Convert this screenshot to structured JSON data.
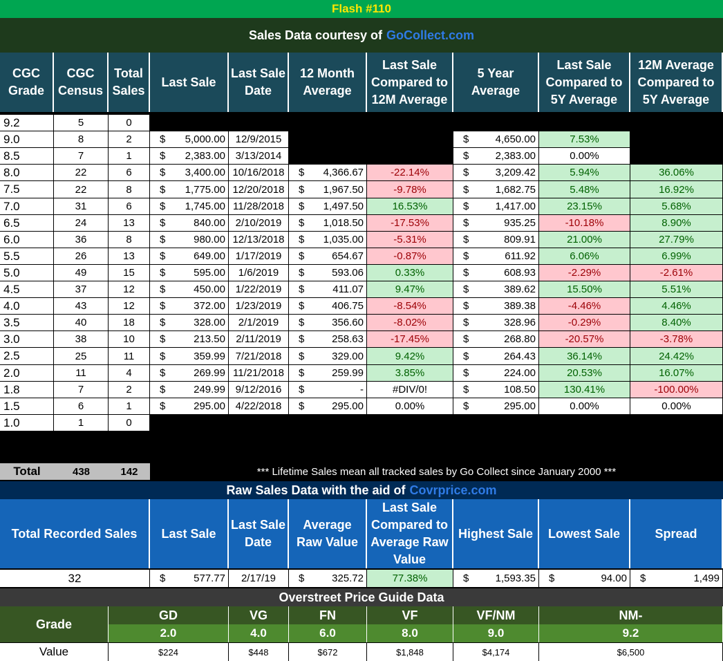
{
  "title": "Flash #110",
  "courtesy": {
    "text": "Sales Data courtesy of",
    "link": "GoCollect.com"
  },
  "cgc_headers": [
    "CGC Grade",
    "CGC Census",
    "Total Sales",
    "Last Sale",
    "Last Sale Date",
    "12 Month Average",
    "Last Sale Compared to 12M Average",
    "5 Year Average",
    "Last Sale Compared to 5Y Average",
    "12M Average Compared to 5Y Average"
  ],
  "rows": [
    {
      "grade": "9.2",
      "census": "5",
      "sales": "0",
      "last": "",
      "date": "",
      "avg12": "",
      "cmp12": "",
      "avg5": "",
      "cmp5": "",
      "c125": ""
    },
    {
      "grade": "9.0",
      "census": "8",
      "sales": "2",
      "last": "5,000.00",
      "date": "12/9/2015",
      "avg12": "",
      "cmp12": "",
      "avg5": "4,650.00",
      "cmp5": "7.53%",
      "c125": ""
    },
    {
      "grade": "8.5",
      "census": "7",
      "sales": "1",
      "last": "2,383.00",
      "date": "3/13/2014",
      "avg12": "",
      "cmp12": "",
      "avg5": "2,383.00",
      "cmp5": "0.00%",
      "c125": ""
    },
    {
      "grade": "8.0",
      "census": "22",
      "sales": "6",
      "last": "3,400.00",
      "date": "10/16/2018",
      "avg12": "4,366.67",
      "cmp12": "-22.14%",
      "avg5": "3,209.42",
      "cmp5": "5.94%",
      "c125": "36.06%"
    },
    {
      "grade": "7.5",
      "census": "22",
      "sales": "8",
      "last": "1,775.00",
      "date": "12/20/2018",
      "avg12": "1,967.50",
      "cmp12": "-9.78%",
      "avg5": "1,682.75",
      "cmp5": "5.48%",
      "c125": "16.92%"
    },
    {
      "grade": "7.0",
      "census": "31",
      "sales": "6",
      "last": "1,745.00",
      "date": "11/28/2018",
      "avg12": "1,497.50",
      "cmp12": "16.53%",
      "avg5": "1,417.00",
      "cmp5": "23.15%",
      "c125": "5.68%"
    },
    {
      "grade": "6.5",
      "census": "24",
      "sales": "13",
      "last": "840.00",
      "date": "2/10/2019",
      "avg12": "1,018.50",
      "cmp12": "-17.53%",
      "avg5": "935.25",
      "cmp5": "-10.18%",
      "c125": "8.90%"
    },
    {
      "grade": "6.0",
      "census": "36",
      "sales": "8",
      "last": "980.00",
      "date": "12/13/2018",
      "avg12": "1,035.00",
      "cmp12": "-5.31%",
      "avg5": "809.91",
      "cmp5": "21.00%",
      "c125": "27.79%"
    },
    {
      "grade": "5.5",
      "census": "26",
      "sales": "13",
      "last": "649.00",
      "date": "1/17/2019",
      "avg12": "654.67",
      "cmp12": "-0.87%",
      "avg5": "611.92",
      "cmp5": "6.06%",
      "c125": "6.99%"
    },
    {
      "grade": "5.0",
      "census": "49",
      "sales": "15",
      "last": "595.00",
      "date": "1/6/2019",
      "avg12": "593.06",
      "cmp12": "0.33%",
      "avg5": "608.93",
      "cmp5": "-2.29%",
      "c125": "-2.61%"
    },
    {
      "grade": "4.5",
      "census": "37",
      "sales": "12",
      "last": "450.00",
      "date": "1/22/2019",
      "avg12": "411.07",
      "cmp12": "9.47%",
      "avg5": "389.62",
      "cmp5": "15.50%",
      "c125": "5.51%"
    },
    {
      "grade": "4.0",
      "census": "43",
      "sales": "12",
      "last": "372.00",
      "date": "1/23/2019",
      "avg12": "406.75",
      "cmp12": "-8.54%",
      "avg5": "389.38",
      "cmp5": "-4.46%",
      "c125": "4.46%"
    },
    {
      "grade": "3.5",
      "census": "40",
      "sales": "18",
      "last": "328.00",
      "date": "2/1/2019",
      "avg12": "356.60",
      "cmp12": "-8.02%",
      "avg5": "328.96",
      "cmp5": "-0.29%",
      "c125": "8.40%"
    },
    {
      "grade": "3.0",
      "census": "38",
      "sales": "10",
      "last": "213.50",
      "date": "2/11/2019",
      "avg12": "258.63",
      "cmp12": "-17.45%",
      "avg5": "268.80",
      "cmp5": "-20.57%",
      "c125": "-3.78%"
    },
    {
      "grade": "2.5",
      "census": "25",
      "sales": "11",
      "last": "359.99",
      "date": "7/21/2018",
      "avg12": "329.00",
      "cmp12": "9.42%",
      "avg5": "264.43",
      "cmp5": "36.14%",
      "c125": "24.42%"
    },
    {
      "grade": "2.0",
      "census": "11",
      "sales": "4",
      "last": "269.99",
      "date": "11/21/2018",
      "avg12": "259.99",
      "cmp12": "3.85%",
      "avg5": "224.00",
      "cmp5": "20.53%",
      "c125": "16.07%"
    },
    {
      "grade": "1.8",
      "census": "7",
      "sales": "2",
      "last": "249.99",
      "date": "9/12/2016",
      "avg12": "-",
      "cmp12": "#DIV/0!",
      "avg5": "108.50",
      "cmp5": "130.41%",
      "c125": "-100.00%"
    },
    {
      "grade": "1.5",
      "census": "6",
      "sales": "1",
      "last": "295.00",
      "date": "4/22/2018",
      "avg12": "295.00",
      "cmp12": "0.00%",
      "avg5": "295.00",
      "cmp5": "0.00%",
      "c125": "0.00%"
    },
    {
      "grade": "1.0",
      "census": "1",
      "sales": "0",
      "last": "",
      "date": "",
      "avg12": "",
      "cmp12": "",
      "avg5": "",
      "cmp5": "",
      "c125": ""
    }
  ],
  "total": {
    "label": "Total",
    "census": "438",
    "sales": "142"
  },
  "lifetime_note": "*** Lifetime Sales mean all tracked sales by Go Collect since January 2000 ***",
  "raw_title": {
    "text": "Raw Sales Data with the aid of",
    "link": "Covrprice.com"
  },
  "raw_headers": [
    "Total Recorded Sales",
    "Last Sale",
    "Last Sale Date",
    "Average Raw Value",
    "Last Sale Compared to Average Raw Value",
    "Highest Sale",
    "Lowest Sale",
    "Spread"
  ],
  "raw_row": {
    "total": "32",
    "last": "577.77",
    "date": "2/17/19",
    "avg": "325.72",
    "cmp": "77.38%",
    "high": "1,593.35",
    "low": "94.00",
    "spread": "1,499"
  },
  "currency": "$",
  "overstreet": {
    "title": "Overstreet Price Guide Data",
    "grade_label": "Grade",
    "value_label": "Value",
    "grades": [
      {
        "name": "GD",
        "num": "2.0",
        "value": "$224"
      },
      {
        "name": "VG",
        "num": "4.0",
        "value": "$448"
      },
      {
        "name": "FN",
        "num": "6.0",
        "value": "$672"
      },
      {
        "name": "VF",
        "num": "8.0",
        "value": "$1,848"
      },
      {
        "name": "VF/NM",
        "num": "9.0",
        "value": "$4,174"
      },
      {
        "name": "NM-",
        "num": "9.2",
        "value": "$6,500"
      }
    ]
  },
  "colors": {
    "title_bg": "#00a651",
    "title_fg": "#ffe600",
    "header_bg": "#1b4a5a",
    "raw_header_bg": "#1565b8",
    "neg_bg": "#ffc7ce",
    "pos_bg": "#c6efce"
  }
}
